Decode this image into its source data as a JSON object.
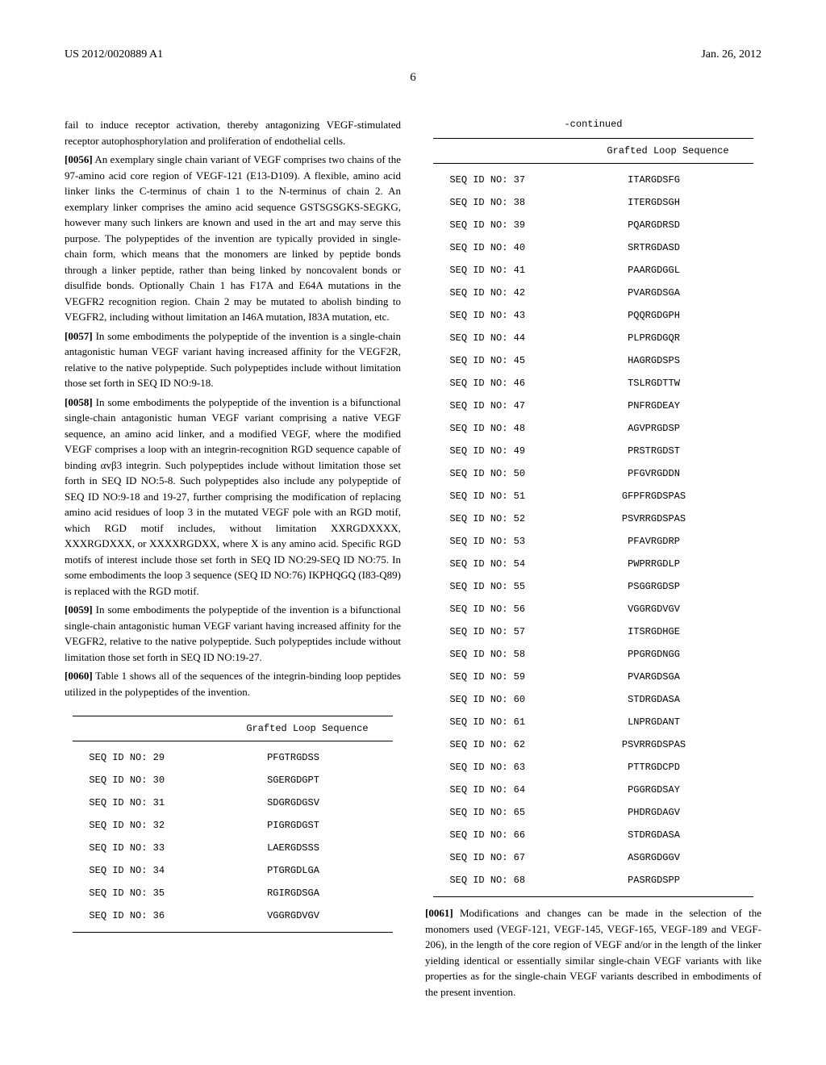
{
  "header": {
    "pub_number": "US 2012/0020889 A1",
    "pub_date": "Jan. 26, 2012",
    "page": "6"
  },
  "left": {
    "p1": "fail to induce receptor activation, thereby antagonizing VEGF-stimulated receptor autophosphorylation and proliferation of endothelial cells.",
    "p2n": "[0056]",
    "p2": " An exemplary single chain variant of VEGF comprises two chains of the 97-amino acid core region of VEGF-121 (E13-D109). A flexible, amino acid linker links the C-terminus of chain 1 to the N-terminus of chain 2. An exemplary linker comprises the amino acid sequence GSTSGSGKS-SEGKG, however many such linkers are known and used in the art and may serve this purpose. The polypeptides of the invention are typically provided in single-chain form, which means that the monomers are linked by peptide bonds through a linker peptide, rather than being linked by noncovalent bonds or disulfide bonds. Optionally Chain 1 has F17A and E64A mutations in the VEGFR2 recognition region. Chain 2 may be mutated to abolish binding to VEGFR2, including without limitation an I46A mutation, I83A mutation, etc.",
    "p3n": "[0057]",
    "p3": " In some embodiments the polypeptide of the invention is a single-chain antagonistic human VEGF variant having increased affinity for the VEGF2R, relative to the native polypeptide. Such polypeptides include without limitation those set forth in SEQ ID NO:9-18.",
    "p4n": "[0058]",
    "p4": " In some embodiments the polypeptide of the invention is a bifunctional single-chain antagonistic human VEGF variant comprising a native VEGF sequence, an amino acid linker, and a modified VEGF, where the modified VEGF comprises a loop with an integrin-recognition RGD sequence capable of binding αvβ3 integrin. Such polypeptides include without limitation those set forth in SEQ ID NO:5-8. Such polypeptides also include any polypeptide of SEQ ID NO:9-18 and 19-27, further comprising the modification of replacing amino acid residues of loop 3 in the mutated VEGF pole with an RGD motif, which RGD motif includes, without limitation XXRGDXXXX, XXXRGDXXX, or XXXXRGDXX, where X is any amino acid. Specific RGD motifs of interest include those set forth in SEQ ID NO:29-SEQ ID NO:75. In some embodiments the loop 3 sequence (SEQ ID NO:76) IKPHQGQ (I83-Q89) is replaced with the RGD motif.",
    "p5n": "[0059]",
    "p5": " In some embodiments the polypeptide of the invention is a bifunctional single-chain antagonistic human VEGF variant having increased affinity for the VEGFR2, relative to the native polypeptide. Such polypeptides include without limitation those set forth in SEQ ID NO:19-27.",
    "p6n": "[0060]",
    "p6": " Table 1 shows all of the sequences of the integrin-binding loop peptides utilized in the polypeptides of the invention."
  },
  "table1": {
    "header": "Grafted Loop Sequence",
    "rows": [
      {
        "id": "SEQ ID NO: 29",
        "seq": "PFGTRGDSS"
      },
      {
        "id": "SEQ ID NO: 30",
        "seq": "SGERGDGPT"
      },
      {
        "id": "SEQ ID NO: 31",
        "seq": "SDGRGDGSV"
      },
      {
        "id": "SEQ ID NO: 32",
        "seq": "PIGRGDGST"
      },
      {
        "id": "SEQ ID NO: 33",
        "seq": "LAERGDSSS"
      },
      {
        "id": "SEQ ID NO: 34",
        "seq": "PTGRGDLGA"
      },
      {
        "id": "SEQ ID NO: 35",
        "seq": "RGIRGDSGA"
      },
      {
        "id": "SEQ ID NO: 36",
        "seq": "VGGRGDVGV"
      }
    ]
  },
  "table2": {
    "continued": "-continued",
    "header": "Grafted Loop Sequence",
    "rows": [
      {
        "id": "SEQ ID NO: 37",
        "seq": "ITARGDSFG"
      },
      {
        "id": "SEQ ID NO: 38",
        "seq": "ITERGDSGH"
      },
      {
        "id": "SEQ ID NO: 39",
        "seq": "PQARGDRSD"
      },
      {
        "id": "SEQ ID NO: 40",
        "seq": "SRTRGDASD"
      },
      {
        "id": "SEQ ID NO: 41",
        "seq": "PAARGDGGL"
      },
      {
        "id": "SEQ ID NO: 42",
        "seq": "PVARGDSGA"
      },
      {
        "id": "SEQ ID NO: 43",
        "seq": "PQQRGDGPH"
      },
      {
        "id": "SEQ ID NO: 44",
        "seq": "PLPRGDGQR"
      },
      {
        "id": "SEQ ID NO: 45",
        "seq": "HAGRGDSPS"
      },
      {
        "id": "SEQ ID NO: 46",
        "seq": "TSLRGDTTW"
      },
      {
        "id": "SEQ ID NO: 47",
        "seq": "PNFRGDEAY"
      },
      {
        "id": "SEQ ID NO: 48",
        "seq": "AGVPRGDSP"
      },
      {
        "id": "SEQ ID NO: 49",
        "seq": "PRSTRGDST"
      },
      {
        "id": "SEQ ID NO: 50",
        "seq": "PFGVRGDDN"
      },
      {
        "id": "SEQ ID NO: 51",
        "seq": "GFPFRGDSPAS"
      },
      {
        "id": "SEQ ID NO: 52",
        "seq": "PSVRRGDSPAS"
      },
      {
        "id": "SEQ ID NO: 53",
        "seq": "PFAVRGDRP"
      },
      {
        "id": "SEQ ID NO: 54",
        "seq": "PWPRRGDLP"
      },
      {
        "id": "SEQ ID NO: 55",
        "seq": "PSGGRGDSP"
      },
      {
        "id": "SEQ ID NO: 56",
        "seq": "VGGRGDVGV"
      },
      {
        "id": "SEQ ID NO: 57",
        "seq": "ITSRGDHGE"
      },
      {
        "id": "SEQ ID NO: 58",
        "seq": "PPGRGDNGG"
      },
      {
        "id": "SEQ ID NO: 59",
        "seq": "PVARGDSGA"
      },
      {
        "id": "SEQ ID NO: 60",
        "seq": "STDRGDASA"
      },
      {
        "id": "SEQ ID NO: 61",
        "seq": "LNPRGDANT"
      },
      {
        "id": "SEQ ID NO: 62",
        "seq": "PSVRRGDSPAS"
      },
      {
        "id": "SEQ ID NO: 63",
        "seq": "PTTRGDCPD"
      },
      {
        "id": "SEQ ID NO: 64",
        "seq": "PGGRGDSAY"
      },
      {
        "id": "SEQ ID NO: 65",
        "seq": "PHDRGDAGV"
      },
      {
        "id": "SEQ ID NO: 66",
        "seq": "STDRGDASA"
      },
      {
        "id": "SEQ ID NO: 67",
        "seq": "ASGRGDGGV"
      },
      {
        "id": "SEQ ID NO: 68",
        "seq": "PASRGDSPP"
      }
    ]
  },
  "right": {
    "p1n": "[0061]",
    "p1": " Modifications and changes can be made in the selection of the monomers used (VEGF-121, VEGF-145, VEGF-165, VEGF-189 and VEGF-206), in the length of the core region of VEGF and/or in the length of the linker yielding identical or essentially similar single-chain VEGF variants with like properties as for the single-chain VEGF variants described in embodiments of the present invention."
  }
}
